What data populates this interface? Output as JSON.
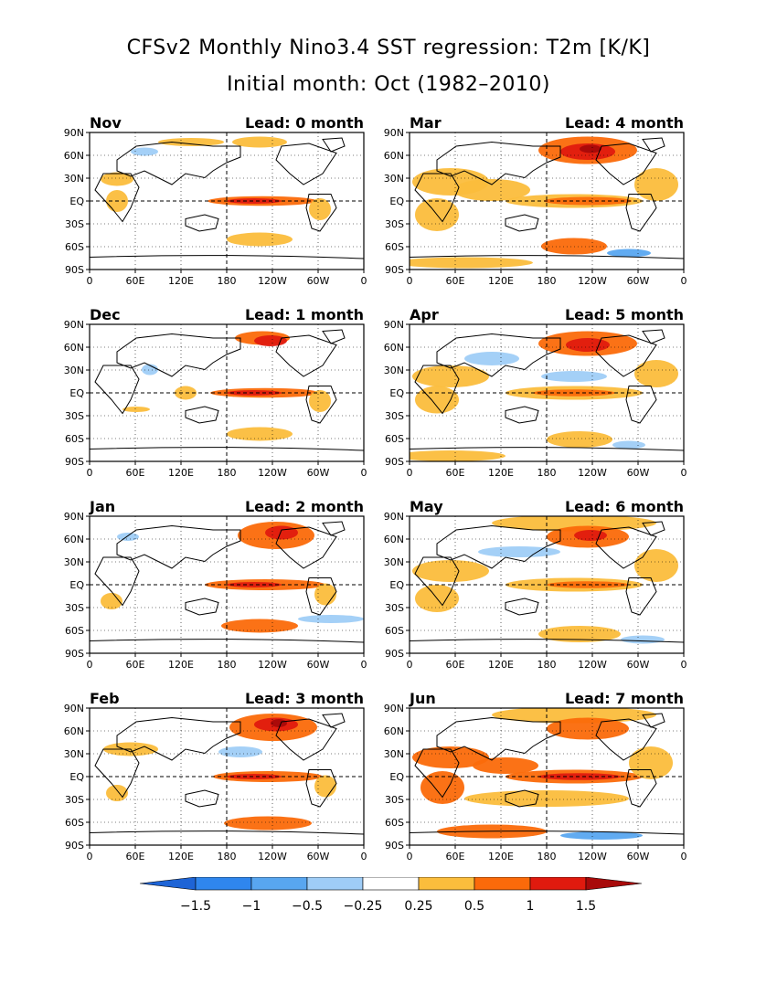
{
  "title": {
    "line1": "CFSv2 Monthly Nino3.4 SST regression: T2m [K/K]",
    "line2": "Initial month: Oct (1982–2010)"
  },
  "lat_labels": [
    "90N",
    "60N",
    "30N",
    "EQ",
    "30S",
    "60S",
    "90S"
  ],
  "lon_labels": [
    "0",
    "60E",
    "120E",
    "180",
    "120W",
    "60W",
    "0"
  ],
  "panels": [
    {
      "month": "Nov",
      "lead": "Lead: 0 month"
    },
    {
      "month": "Mar",
      "lead": "Lead: 4 month"
    },
    {
      "month": "Dec",
      "lead": "Lead: 1 month"
    },
    {
      "month": "Apr",
      "lead": "Lead: 5 month"
    },
    {
      "month": "Jan",
      "lead": "Lead: 2 month"
    },
    {
      "month": "May",
      "lead": "Lead: 6 month"
    },
    {
      "month": "Feb",
      "lead": "Lead: 3 month"
    },
    {
      "month": "Jun",
      "lead": "Lead: 7 month"
    }
  ],
  "colorbar": {
    "labels": [
      "−1.5",
      "−1",
      "−0.5",
      "−0.25",
      "0.25",
      "0.5",
      "1",
      "1.5"
    ],
    "colors": [
      "#1e64d6",
      "#2f86ee",
      "#58a6f0",
      "#9fcdf7",
      "#ffffff",
      "#fbbd3c",
      "#fb6a0a",
      "#e01a0e",
      "#a80a0a"
    ]
  }
}
